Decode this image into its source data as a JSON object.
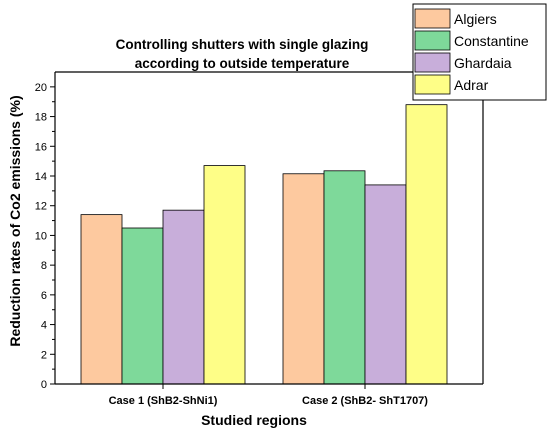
{
  "chart_data": {
    "type": "bar",
    "title": "Controlling shutters with single glazing according to outside temperature",
    "title_lines": [
      "Controlling shutters with single glazing",
      "according to outside temperature"
    ],
    "xlabel": "Studied regions",
    "ylabel": "Reduction rates of Co2 emissions (%)",
    "categories": [
      "Case 1 (ShB2-ShNi1)",
      "Case 2 (ShB2- ShT1707)"
    ],
    "ylim": [
      0,
      21
    ],
    "yticks": [
      0,
      2,
      4,
      6,
      8,
      10,
      12,
      14,
      16,
      18,
      20
    ],
    "grid": false,
    "legend_position": "top-right",
    "series": [
      {
        "name": "Algiers",
        "color": "#FDC99F",
        "values": [
          11.4,
          14.15
        ]
      },
      {
        "name": "Constantine",
        "color": "#7ED99A",
        "values": [
          10.5,
          14.35
        ]
      },
      {
        "name": "Ghardaia",
        "color": "#C8AEDA",
        "values": [
          11.7,
          13.4
        ]
      },
      {
        "name": "Adrar",
        "color": "#FEFE87",
        "values": [
          14.7,
          18.8
        ]
      }
    ]
  }
}
